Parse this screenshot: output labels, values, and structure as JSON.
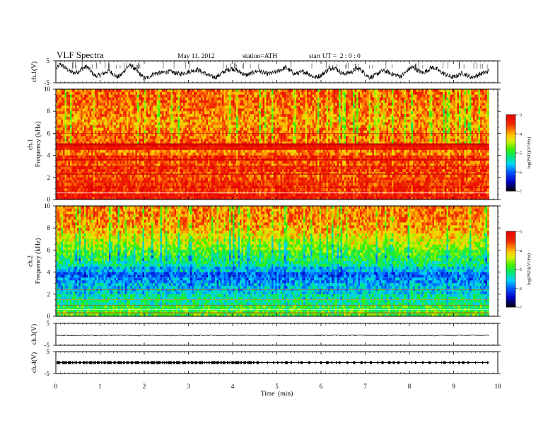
{
  "header": {
    "title": "VLF Spectra",
    "date": "May 11, 2012",
    "station": "station=ATH",
    "start": "start UT =  2 : 0 : 0"
  },
  "chart_data": [
    {
      "type": "line",
      "panel": "ch1-waveform",
      "ylabel": "ch.1(V)",
      "ylim": [
        -5,
        5
      ],
      "yticks": [
        "5",
        "-5"
      ],
      "x": [
        0,
        0.1,
        0.2,
        0.3,
        0.4,
        0.5,
        0.6,
        0.7,
        0.8,
        0.9,
        1.0,
        1.1,
        1.2,
        1.3,
        1.4,
        1.5,
        1.6,
        1.7,
        1.8,
        1.9,
        2.0,
        2.1,
        2.2,
        2.3,
        2.4,
        2.5,
        2.6,
        2.7,
        2.8,
        2.9,
        3.0,
        3.1,
        3.2,
        3.3,
        3.4,
        3.5,
        3.6,
        3.7,
        3.8,
        3.9,
        4.0,
        4.1,
        4.2,
        4.3,
        4.4,
        4.5,
        4.6,
        4.7,
        4.8,
        4.9,
        5.0,
        5.1,
        5.2,
        5.3,
        5.4,
        5.5,
        5.6,
        5.7,
        5.8,
        5.9,
        6.0,
        6.1,
        6.2,
        6.3,
        6.4,
        6.5,
        6.6,
        6.7,
        6.8,
        6.9,
        7.0,
        7.1,
        7.2,
        7.3,
        7.4,
        7.5,
        7.6,
        7.7,
        7.8,
        7.9,
        8.0,
        8.1,
        8.2,
        8.3,
        8.4,
        8.5,
        8.6,
        8.7,
        8.8,
        8.9,
        9.0,
        9.1,
        9.2,
        9.3,
        9.4,
        9.5,
        9.6,
        9.7,
        9.8
      ],
      "y": [
        1.0,
        3.5,
        2.0,
        0.5,
        -0.5,
        0.0,
        1.5,
        2.5,
        0.0,
        -2.0,
        -1.5,
        -0.5,
        0.5,
        -1.0,
        -2.5,
        -1.0,
        2.0,
        3.0,
        1.0,
        -1.0,
        -3.0,
        -2.5,
        -1.0,
        -0.5,
        -0.5,
        0.0,
        0.0,
        -0.5,
        -1.0,
        -0.5,
        0.0,
        0.5,
        1.0,
        0.0,
        -1.0,
        -2.0,
        -2.5,
        -1.5,
        0.0,
        1.0,
        1.5,
        0.5,
        -0.5,
        -1.5,
        -1.0,
        0.0,
        0.5,
        -0.5,
        -1.0,
        -0.5,
        0.0,
        1.0,
        2.0,
        0.5,
        -1.0,
        -0.5,
        0.0,
        -0.5,
        -2.0,
        -2.5,
        -1.5,
        0.0,
        1.5,
        2.0,
        0.5,
        -1.0,
        -0.5,
        0.0,
        1.5,
        1.0,
        -1.0,
        -2.5,
        -2.0,
        -0.5,
        0.5,
        0.0,
        -1.0,
        -1.5,
        -2.0,
        -0.5,
        1.5,
        2.0,
        0.5,
        -0.5,
        0.5,
        2.0,
        1.5,
        0.0,
        -1.0,
        -2.0,
        -2.5,
        -1.5,
        -0.5,
        -1.5,
        -2.5,
        -2.0,
        -1.0,
        -0.5,
        0.5
      ]
    },
    {
      "type": "heatmap",
      "panel": "ch1-spectrogram",
      "ylabel": "ch.1\nFrequency (kHz)",
      "ylim": [
        0,
        10
      ],
      "yticks": [
        "0",
        "2",
        "4",
        "6",
        "8",
        "10"
      ],
      "xlim": [
        0,
        9.8
      ],
      "frequency_bins_khz": [
        0.25,
        0.75,
        1.25,
        1.75,
        2.25,
        2.75,
        3.25,
        3.75,
        4.25,
        4.75,
        5.25,
        5.75,
        6.25,
        6.75,
        7.25,
        7.75,
        8.25,
        8.75,
        9.25,
        9.75
      ],
      "mean_log_psd": [
        -3.2,
        -3.4,
        -3.4,
        -3.5,
        -3.6,
        -3.4,
        -3.6,
        -3.4,
        -3.8,
        -3.1,
        -3.7,
        -3.7,
        -3.8,
        -3.9,
        -3.9,
        -3.8,
        -3.8,
        -3.7,
        -3.7,
        -3.7
      ],
      "colorbar": {
        "label": "log(PSD)(V²/Hz)",
        "ticks": [
          "-3",
          "-4",
          "-5",
          "-6",
          "-7"
        ],
        "range": [
          -7,
          -3
        ]
      }
    },
    {
      "type": "heatmap",
      "panel": "ch2-spectrogram",
      "ylabel": "ch.2\nFrequency (kHz)",
      "ylim": [
        0,
        10
      ],
      "yticks": [
        "0",
        "2",
        "4",
        "6",
        "8",
        "10"
      ],
      "xlim": [
        0,
        9.8
      ],
      "frequency_bins_khz": [
        0.25,
        0.75,
        1.25,
        1.75,
        2.25,
        2.75,
        3.25,
        3.75,
        4.25,
        4.75,
        5.25,
        5.75,
        6.25,
        6.75,
        7.25,
        7.75,
        8.25,
        8.75,
        9.25,
        9.75
      ],
      "mean_log_psd": [
        -4.8,
        -4.9,
        -5.2,
        -5.3,
        -5.5,
        -5.6,
        -5.8,
        -6.0,
        -5.6,
        -5.2,
        -5.0,
        -4.8,
        -4.6,
        -4.4,
        -4.2,
        -4.0,
        -3.9,
        -3.8,
        -3.8,
        -3.8
      ],
      "colorbar": {
        "label": "log(PSD)(V²/Hz)",
        "ticks": [
          "-3",
          "-4",
          "-5",
          "-6",
          "-7"
        ],
        "range": [
          -7,
          -3
        ]
      }
    },
    {
      "type": "line",
      "panel": "ch3-waveform",
      "ylabel": "ch.3(V)",
      "ylim": [
        -5,
        5
      ],
      "yticks": [
        "5",
        "-5"
      ],
      "x": [
        0,
        9.8
      ],
      "y": [
        -0.5,
        -0.5
      ]
    },
    {
      "type": "line",
      "panel": "ch4-waveform",
      "ylabel": "ch.4(V)",
      "ylim": [
        -5,
        5
      ],
      "yticks": [
        "5",
        "-5"
      ],
      "x": [
        0,
        9.8
      ],
      "y": [
        0.0,
        0.0
      ]
    }
  ],
  "xaxis": {
    "label": "Time  (min)",
    "ticks": [
      "0",
      "1",
      "2",
      "3",
      "4",
      "5",
      "6",
      "7",
      "8",
      "9",
      "10"
    ],
    "xlim": [
      0,
      10
    ]
  }
}
